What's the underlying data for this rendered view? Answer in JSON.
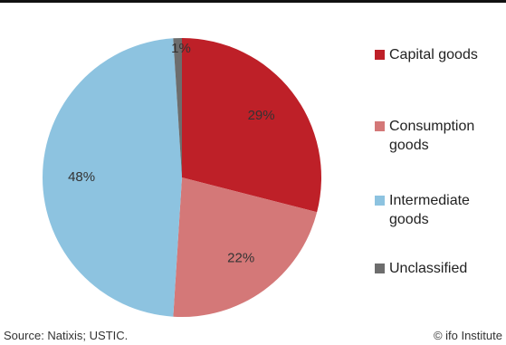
{
  "chart_data": {
    "type": "pie",
    "categories": [
      "Capital goods",
      "Consumption goods",
      "Intermediate goods",
      "Unclassified"
    ],
    "values": [
      29,
      22,
      48,
      1
    ],
    "labels": [
      "29%",
      "22%",
      "48%",
      "1%"
    ],
    "colors": [
      "#be2028",
      "#d47878",
      "#8dc3e0",
      "#6d6d6d"
    ],
    "start": "12 o'clock",
    "direction": "clockwise",
    "legend_position": "right"
  },
  "legend": [
    {
      "label": "Capital goods",
      "color": "#be2028"
    },
    {
      "label": "Consumption goods",
      "color": "#d47878"
    },
    {
      "label": "Intermediate goods",
      "color": "#8dc3e0"
    },
    {
      "label": "Unclassified",
      "color": "#6d6d6d"
    }
  ],
  "footer": {
    "source": "Source: Natixis; USTIC.",
    "credit": "© ifo Institute"
  }
}
